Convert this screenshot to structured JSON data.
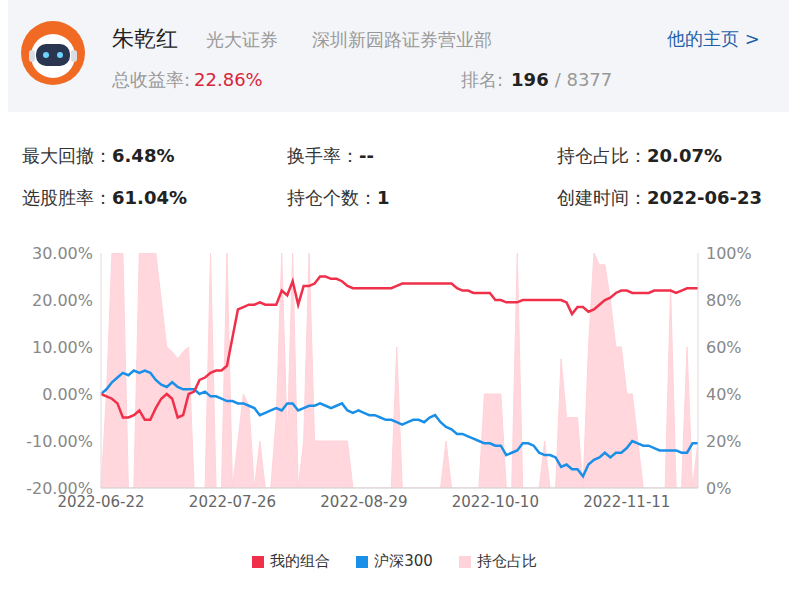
{
  "header": {
    "name": "朱乾红",
    "broker": "光大证券",
    "branch": "深圳新园路证券营业部",
    "homepage_link": "他的主页 >",
    "total_return_label": "总收益率:",
    "total_return": "22.86%",
    "rank_label": "排名:",
    "rank": "196",
    "rank_total": "/ 8377"
  },
  "stats": [
    {
      "label": "最大回撤：",
      "value": "6.48%"
    },
    {
      "label": "换手率：",
      "value": "--"
    },
    {
      "label": "持仓占比：",
      "value": "20.07%"
    },
    {
      "label": "选股胜率：",
      "value": "61.04%"
    },
    {
      "label": "持仓个数：",
      "value": "1"
    },
    {
      "label": "创建时间：",
      "value": "2022-06-23"
    }
  ],
  "chart_data": {
    "type": "line",
    "grid": false,
    "legend": "bottom",
    "categories": [
      "2022-06-22",
      null,
      null,
      null,
      null,
      null,
      null,
      null,
      null,
      null,
      null,
      null,
      null,
      null,
      null,
      null,
      null,
      null,
      null,
      null,
      null,
      null,
      null,
      null,
      "2022-07-26",
      null,
      null,
      null,
      null,
      null,
      null,
      null,
      null,
      null,
      null,
      null,
      null,
      null,
      null,
      null,
      null,
      null,
      null,
      null,
      null,
      null,
      null,
      null,
      "2022-08-29",
      null,
      null,
      null,
      null,
      null,
      null,
      null,
      null,
      null,
      null,
      null,
      null,
      null,
      null,
      null,
      null,
      null,
      null,
      null,
      null,
      null,
      null,
      null,
      "2022-10-10",
      null,
      null,
      null,
      null,
      null,
      null,
      null,
      null,
      null,
      null,
      null,
      null,
      null,
      null,
      null,
      null,
      null,
      null,
      null,
      null,
      null,
      null,
      null,
      "2022-11-11",
      null,
      null,
      null,
      null,
      null,
      null,
      null,
      null,
      null,
      null,
      null,
      null,
      null
    ],
    "ylim": [
      -20,
      30
    ],
    "yticks": [
      {
        "value": -20,
        "label": "-20.00%"
      },
      {
        "value": -10,
        "label": "-10.00%"
      },
      {
        "value": 0,
        "label": "0.00%"
      },
      {
        "value": 10,
        "label": "10.00%"
      },
      {
        "value": 20,
        "label": "20.00%"
      },
      {
        "value": 30,
        "label": "30.00%"
      }
    ],
    "y2lim": [
      0,
      100
    ],
    "y2ticks": [
      {
        "value": 0,
        "label": "0%"
      },
      {
        "value": 20,
        "label": "20%"
      },
      {
        "value": 40,
        "label": "40%"
      },
      {
        "value": 60,
        "label": "60%"
      },
      {
        "value": 80,
        "label": "80%"
      },
      {
        "value": 100,
        "label": "100%"
      }
    ],
    "series": [
      {
        "name": "我的组合",
        "type": "line",
        "color": "#f0304a",
        "values": [
          0,
          -0.5,
          -1,
          -2,
          -5,
          -5,
          -4.5,
          -3.5,
          -5.5,
          -5.5,
          -3,
          -1,
          0,
          -1,
          -5,
          -4.5,
          0,
          0.5,
          3,
          3.5,
          4.5,
          5,
          5,
          6,
          12,
          18,
          18.5,
          19,
          19,
          19.5,
          19,
          19,
          19,
          22,
          21,
          24,
          19,
          23,
          23,
          23.5,
          25,
          25,
          24.5,
          24.5,
          24,
          23,
          22.5,
          22.5,
          22.5,
          22.5,
          22.5,
          22.5,
          22.5,
          22.5,
          23,
          23.5,
          23.5,
          23.5,
          23.5,
          23.5,
          23.5,
          23.5,
          23.5,
          23.5,
          23.5,
          22.5,
          22,
          22,
          21.5,
          21.5,
          21.5,
          21.5,
          20,
          20,
          19.5,
          19.5,
          19.5,
          20,
          20,
          20,
          20,
          20,
          20,
          20,
          20,
          19.5,
          17,
          18.5,
          18.5,
          17.5,
          18,
          19,
          20,
          20.5,
          21.5,
          22,
          22,
          21.5,
          21.5,
          21.5,
          21.5,
          22,
          22,
          22,
          22,
          21.5,
          22,
          22.5,
          22.5,
          22.5
        ]
      },
      {
        "name": "沪深300",
        "type": "line",
        "color": "#1a8fe8",
        "values": [
          0,
          1,
          2.5,
          3.5,
          4.5,
          4,
          5,
          4.5,
          5,
          4.5,
          3,
          2,
          1.5,
          2.5,
          1.5,
          1,
          1,
          1,
          0,
          0.5,
          -0.5,
          -0.5,
          -1,
          -1.5,
          -1.5,
          -2,
          -2,
          -2.5,
          -3,
          -4.5,
          -4,
          -3.5,
          -3,
          -3.5,
          -2,
          -2,
          -3.5,
          -3,
          -2.5,
          -2.5,
          -2,
          -2.5,
          -3,
          -2.5,
          -2,
          -3.5,
          -4,
          -3.5,
          -4,
          -4.5,
          -4.5,
          -5,
          -5.5,
          -5.5,
          -6,
          -6.5,
          -6,
          -5.5,
          -5.5,
          -6,
          -5,
          -4.5,
          -6,
          -7,
          -7.5,
          -8.5,
          -8.5,
          -9,
          -9.5,
          -10,
          -10.5,
          -10.5,
          -11,
          -11,
          -13,
          -12.5,
          -12,
          -10.5,
          -10.5,
          -11,
          -12.5,
          -13,
          -13,
          -13.5,
          -15.5,
          -15,
          -16,
          -16,
          -17.5,
          -15,
          -14,
          -13.5,
          -12.5,
          -13.5,
          -12.5,
          -12.5,
          -11.5,
          -10,
          -10.5,
          -11,
          -11,
          -11.5,
          -12,
          -12,
          -12,
          -12,
          -12.5,
          -12.5,
          -10.5,
          -10.5
        ]
      },
      {
        "name": "持仓占比",
        "type": "area",
        "axis": "y2",
        "color": "#ffd3d9",
        "values": [
          0,
          40,
          100,
          100,
          100,
          0,
          0,
          100,
          100,
          100,
          100,
          80,
          60,
          58,
          55,
          58,
          60,
          0,
          0,
          0,
          100,
          0,
          0,
          100,
          0,
          20,
          40,
          35,
          0,
          20,
          0,
          0,
          30,
          100,
          20,
          100,
          0,
          20,
          100,
          20,
          20,
          20,
          20,
          20,
          20,
          20,
          0,
          0,
          0,
          0,
          0,
          0,
          0,
          0,
          60,
          0,
          0,
          0,
          0,
          0,
          0,
          0,
          0,
          20,
          0,
          0,
          0,
          0,
          0,
          0,
          40,
          40,
          40,
          40,
          0,
          0,
          100,
          0,
          0,
          0,
          0,
          20,
          0,
          0,
          55,
          30,
          30,
          30,
          0,
          60,
          100,
          95,
          95,
          80,
          60,
          60,
          40,
          40,
          20,
          0,
          0,
          0,
          0,
          0,
          85,
          0,
          0,
          60,
          0,
          20
        ]
      }
    ]
  }
}
